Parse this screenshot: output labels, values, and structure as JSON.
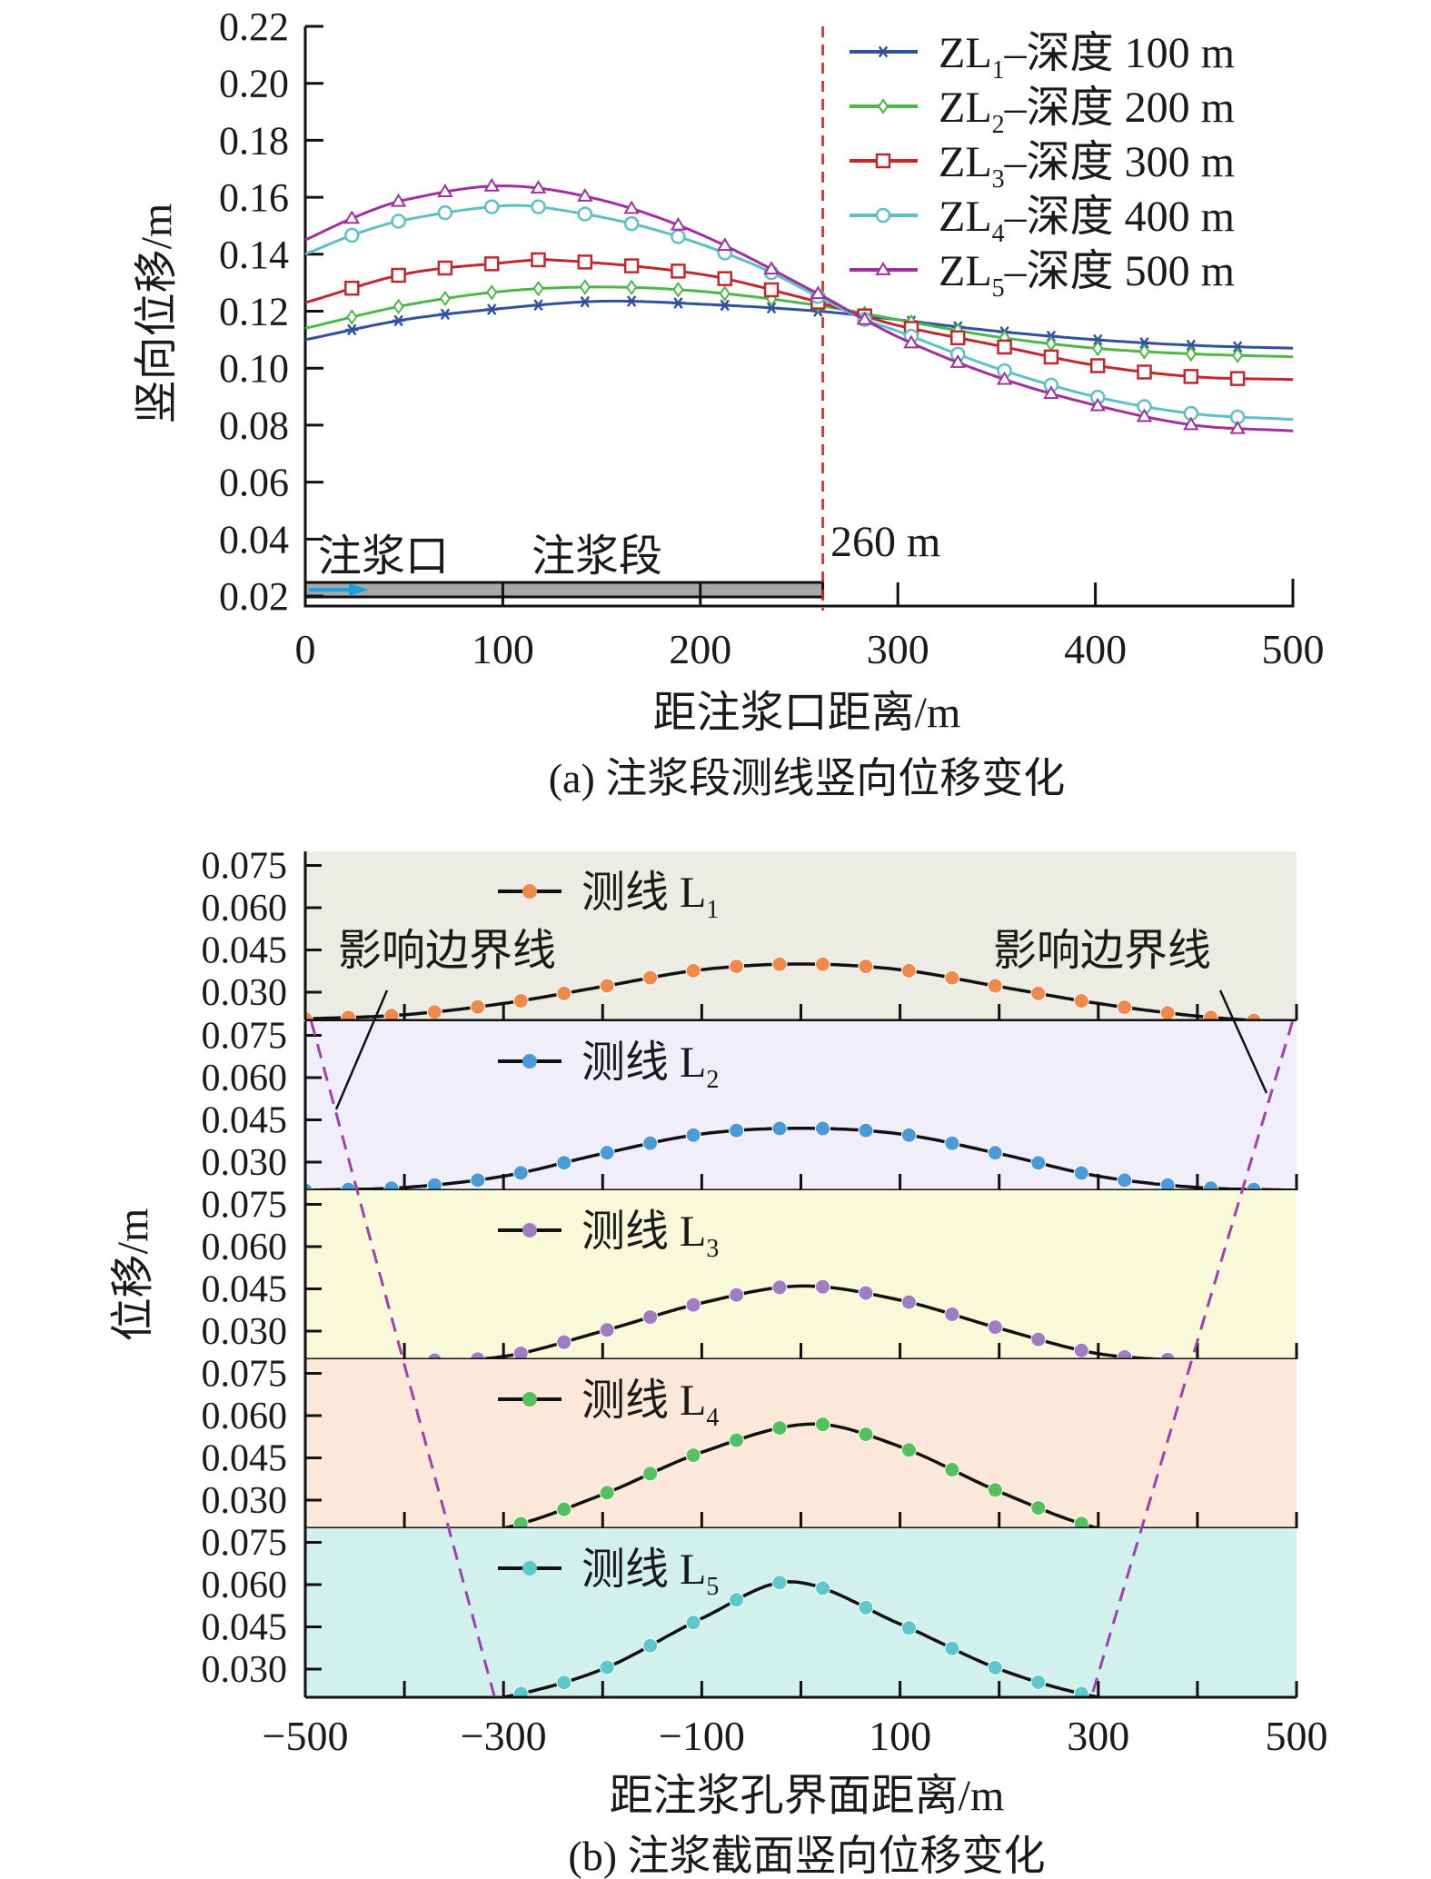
{
  "chart_data": [
    {
      "type": "line",
      "caption": "(a) 注浆段测线竖向位移变化",
      "xlabel": "距注浆口距离/m",
      "ylabel": "竖向位移/m",
      "xlim": [
        0,
        500
      ],
      "ylim": [
        0.0165,
        0.22
      ],
      "xticks": [
        "0",
        "100",
        "200",
        "300",
        "400",
        "500"
      ],
      "yticks": [
        "0.02",
        "0.04",
        "0.06",
        "0.08",
        "0.10",
        "0.12",
        "0.14",
        "0.16",
        "0.18",
        "0.20",
        "0.22"
      ],
      "legend_position": "top-right",
      "annotations": {
        "inlet": "注浆口",
        "segment": "注浆段",
        "boundary": "260 m"
      },
      "boundary_x": 262,
      "segment_color": "#a4a8a8",
      "arrow_color": "#1aa0e0",
      "boundary_color": "#d02020",
      "series": [
        {
          "name_main": "ZL",
          "name_sub": "1",
          "name_rest": "–深度 100 m",
          "color": "#3050a0",
          "marker": "asterisk",
          "x": [
            0,
            50,
            100,
            150,
            200,
            260,
            300,
            350,
            400,
            450,
            500
          ],
          "y": [
            0.11,
            0.117,
            0.121,
            0.1235,
            0.1225,
            0.12,
            0.117,
            0.113,
            0.11,
            0.108,
            0.107
          ]
        },
        {
          "name_main": "ZL",
          "name_sub": "2",
          "name_rest": "–深度 200 m",
          "color": "#4cb848",
          "marker": "diamond",
          "x": [
            0,
            50,
            100,
            150,
            200,
            260,
            300,
            350,
            400,
            450,
            500
          ],
          "y": [
            0.114,
            0.122,
            0.127,
            0.1285,
            0.127,
            0.122,
            0.117,
            0.111,
            0.107,
            0.105,
            0.104
          ]
        },
        {
          "name_main": "ZL",
          "name_sub": "3",
          "name_rest": "–深度 300 m",
          "color": "#c0282e",
          "marker": "square",
          "x": [
            0,
            50,
            100,
            125,
            200,
            250,
            280,
            300,
            350,
            400,
            450,
            500
          ],
          "y": [
            0.123,
            0.133,
            0.137,
            0.138,
            0.133,
            0.125,
            0.119,
            0.115,
            0.108,
            0.101,
            0.097,
            0.096
          ]
        },
        {
          "name_main": "ZL",
          "name_sub": "4",
          "name_rest": "–深度 400 m",
          "color": "#5cc0c4",
          "marker": "circle",
          "x": [
            0,
            25,
            50,
            100,
            125,
            175,
            225,
            260,
            280,
            300,
            350,
            400,
            450,
            500
          ],
          "y": [
            0.14,
            0.147,
            0.152,
            0.157,
            0.156,
            0.149,
            0.137,
            0.125,
            0.118,
            0.113,
            0.1,
            0.09,
            0.084,
            0.082
          ]
        },
        {
          "name_main": "ZL",
          "name_sub": "5",
          "name_rest": "–深度 500 m",
          "color": "#a030a0",
          "marker": "triangle",
          "x": [
            0,
            25,
            50,
            100,
            150,
            200,
            260,
            300,
            350,
            400,
            450,
            500
          ],
          "y": [
            0.145,
            0.153,
            0.159,
            0.164,
            0.159,
            0.147,
            0.126,
            0.111,
            0.097,
            0.087,
            0.08,
            0.078
          ]
        }
      ]
    },
    {
      "type": "line",
      "caption": "(b) 注浆截面竖向位移变化",
      "xlabel": "距注浆孔界面距离/m",
      "ylabel": "位移/m",
      "xlim": [
        -500,
        500
      ],
      "ylim": [
        0.02,
        0.08
      ],
      "xticks": [
        "−500",
        "−300",
        "−100",
        "100",
        "300",
        "500"
      ],
      "yticks": [
        "0.030",
        "0.045",
        "0.060",
        "0.075"
      ],
      "annotation_left": "影响边界线",
      "annotation_right": "影响边界线",
      "boundary_color": "#a040b0",
      "boundary_left": [
        [
          -494,
          "L1"
        ],
        [
          -309,
          "L5"
        ]
      ],
      "boundary_right": [
        [
          496,
          "L1"
        ],
        [
          293,
          "L5"
        ]
      ],
      "panels": [
        {
          "name_main": "测线 L",
          "name_sub": "1",
          "background": "#ecebe4",
          "marker_color": "#f08a4b",
          "x": [
            -500,
            -400,
            -300,
            -200,
            -100,
            0,
            100,
            200,
            300,
            400,
            500
          ],
          "y": [
            0.0205,
            0.022,
            0.026,
            0.032,
            0.038,
            0.04,
            0.038,
            0.032,
            0.026,
            0.0215,
            0.019
          ]
        },
        {
          "name_main": "测线 L",
          "name_sub": "2",
          "background": "#f0eef8",
          "marker_color": "#4a9ad8",
          "x": [
            -500,
            -400,
            -300,
            -200,
            -100,
            0,
            100,
            200,
            300,
            400,
            500
          ],
          "y": [
            0.02,
            0.021,
            0.025,
            0.033,
            0.04,
            0.042,
            0.04,
            0.033,
            0.025,
            0.021,
            0.02
          ]
        },
        {
          "name_main": "测线 L",
          "name_sub": "3",
          "background": "#f7f9d8",
          "marker_color": "#a07cc0",
          "x": [
            -500,
            -400,
            -300,
            -200,
            -100,
            0,
            100,
            200,
            300,
            400,
            500
          ],
          "y": [
            0.019,
            0.0195,
            0.021,
            0.03,
            0.04,
            0.046,
            0.041,
            0.031,
            0.022,
            0.0195,
            0.019
          ]
        },
        {
          "name_main": "测线 L",
          "name_sub": "4",
          "background": "#fce8d9",
          "marker_color": "#55c060",
          "x": [
            -500,
            -400,
            -300,
            -200,
            -100,
            10,
            100,
            200,
            300,
            400,
            500
          ],
          "y": [
            0.015,
            0.016,
            0.02,
            0.032,
            0.047,
            0.057,
            0.049,
            0.033,
            0.02,
            0.016,
            0.015
          ]
        },
        {
          "name_main": "测线 L",
          "name_sub": "5",
          "background": "#d2f0ec",
          "marker_color": "#5cc8cc",
          "x": [
            -500,
            -400,
            -300,
            -200,
            -100,
            -10,
            100,
            200,
            300,
            400,
            500
          ],
          "y": [
            0.015,
            0.016,
            0.02,
            0.03,
            0.048,
            0.061,
            0.046,
            0.03,
            0.02,
            0.016,
            0.015
          ]
        }
      ]
    }
  ]
}
